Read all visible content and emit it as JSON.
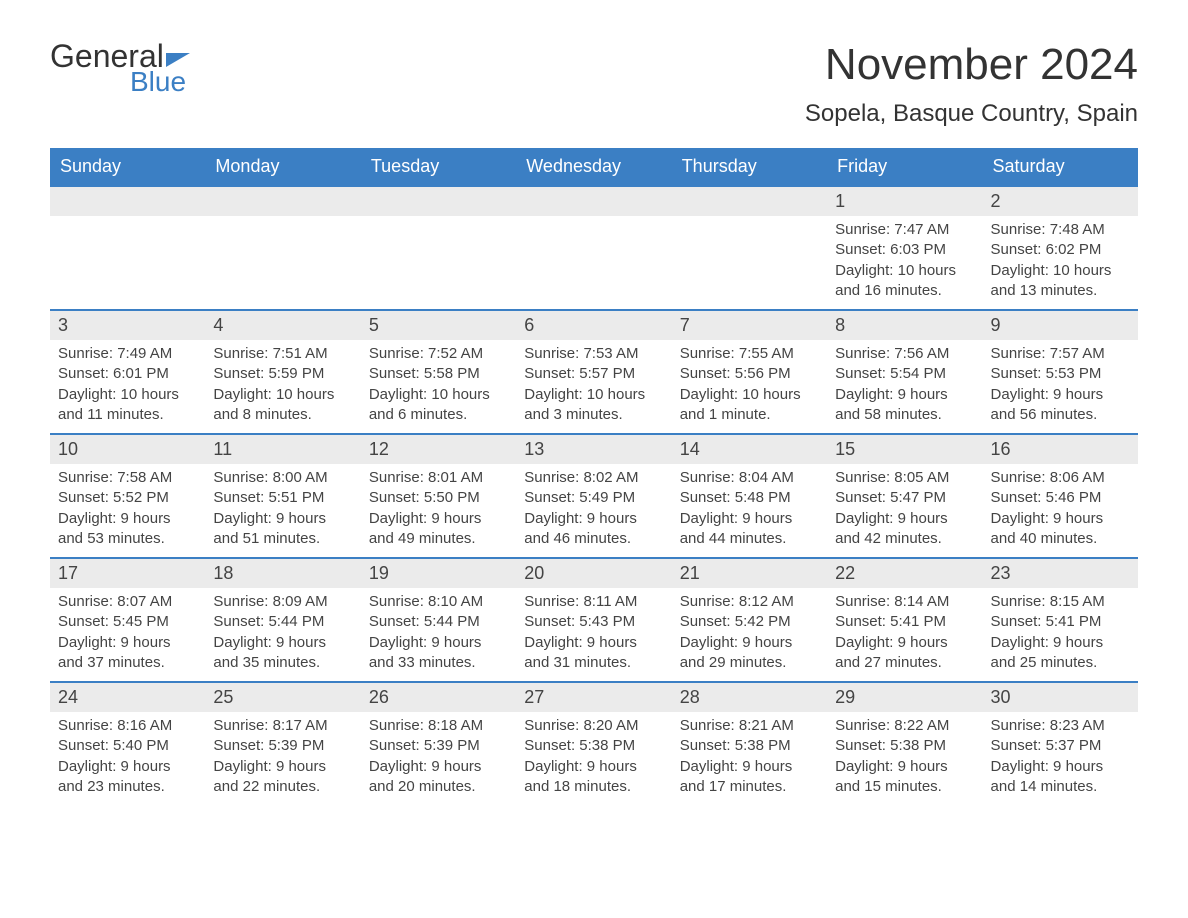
{
  "logo": {
    "text_top": "General",
    "text_bottom": "Blue",
    "top_color": "#333333",
    "bottom_color": "#3b7fc4",
    "triangle_color": "#3b7fc4"
  },
  "header": {
    "month_title": "November 2024",
    "location": "Sopela, Basque Country, Spain"
  },
  "colors": {
    "header_bg": "#3b7fc4",
    "header_text": "#ffffff",
    "daynum_bg": "#ebebeb",
    "border_top": "#3b7fc4",
    "text": "#444444",
    "background": "#ffffff"
  },
  "day_headers": [
    "Sunday",
    "Monday",
    "Tuesday",
    "Wednesday",
    "Thursday",
    "Friday",
    "Saturday"
  ],
  "weeks": [
    [
      {
        "empty": true
      },
      {
        "empty": true
      },
      {
        "empty": true
      },
      {
        "empty": true
      },
      {
        "empty": true
      },
      {
        "day": "1",
        "sunrise": "Sunrise: 7:47 AM",
        "sunset": "Sunset: 6:03 PM",
        "daylight1": "Daylight: 10 hours",
        "daylight2": "and 16 minutes."
      },
      {
        "day": "2",
        "sunrise": "Sunrise: 7:48 AM",
        "sunset": "Sunset: 6:02 PM",
        "daylight1": "Daylight: 10 hours",
        "daylight2": "and 13 minutes."
      }
    ],
    [
      {
        "day": "3",
        "sunrise": "Sunrise: 7:49 AM",
        "sunset": "Sunset: 6:01 PM",
        "daylight1": "Daylight: 10 hours",
        "daylight2": "and 11 minutes."
      },
      {
        "day": "4",
        "sunrise": "Sunrise: 7:51 AM",
        "sunset": "Sunset: 5:59 PM",
        "daylight1": "Daylight: 10 hours",
        "daylight2": "and 8 minutes."
      },
      {
        "day": "5",
        "sunrise": "Sunrise: 7:52 AM",
        "sunset": "Sunset: 5:58 PM",
        "daylight1": "Daylight: 10 hours",
        "daylight2": "and 6 minutes."
      },
      {
        "day": "6",
        "sunrise": "Sunrise: 7:53 AM",
        "sunset": "Sunset: 5:57 PM",
        "daylight1": "Daylight: 10 hours",
        "daylight2": "and 3 minutes."
      },
      {
        "day": "7",
        "sunrise": "Sunrise: 7:55 AM",
        "sunset": "Sunset: 5:56 PM",
        "daylight1": "Daylight: 10 hours",
        "daylight2": "and 1 minute."
      },
      {
        "day": "8",
        "sunrise": "Sunrise: 7:56 AM",
        "sunset": "Sunset: 5:54 PM",
        "daylight1": "Daylight: 9 hours",
        "daylight2": "and 58 minutes."
      },
      {
        "day": "9",
        "sunrise": "Sunrise: 7:57 AM",
        "sunset": "Sunset: 5:53 PM",
        "daylight1": "Daylight: 9 hours",
        "daylight2": "and 56 minutes."
      }
    ],
    [
      {
        "day": "10",
        "sunrise": "Sunrise: 7:58 AM",
        "sunset": "Sunset: 5:52 PM",
        "daylight1": "Daylight: 9 hours",
        "daylight2": "and 53 minutes."
      },
      {
        "day": "11",
        "sunrise": "Sunrise: 8:00 AM",
        "sunset": "Sunset: 5:51 PM",
        "daylight1": "Daylight: 9 hours",
        "daylight2": "and 51 minutes."
      },
      {
        "day": "12",
        "sunrise": "Sunrise: 8:01 AM",
        "sunset": "Sunset: 5:50 PM",
        "daylight1": "Daylight: 9 hours",
        "daylight2": "and 49 minutes."
      },
      {
        "day": "13",
        "sunrise": "Sunrise: 8:02 AM",
        "sunset": "Sunset: 5:49 PM",
        "daylight1": "Daylight: 9 hours",
        "daylight2": "and 46 minutes."
      },
      {
        "day": "14",
        "sunrise": "Sunrise: 8:04 AM",
        "sunset": "Sunset: 5:48 PM",
        "daylight1": "Daylight: 9 hours",
        "daylight2": "and 44 minutes."
      },
      {
        "day": "15",
        "sunrise": "Sunrise: 8:05 AM",
        "sunset": "Sunset: 5:47 PM",
        "daylight1": "Daylight: 9 hours",
        "daylight2": "and 42 minutes."
      },
      {
        "day": "16",
        "sunrise": "Sunrise: 8:06 AM",
        "sunset": "Sunset: 5:46 PM",
        "daylight1": "Daylight: 9 hours",
        "daylight2": "and 40 minutes."
      }
    ],
    [
      {
        "day": "17",
        "sunrise": "Sunrise: 8:07 AM",
        "sunset": "Sunset: 5:45 PM",
        "daylight1": "Daylight: 9 hours",
        "daylight2": "and 37 minutes."
      },
      {
        "day": "18",
        "sunrise": "Sunrise: 8:09 AM",
        "sunset": "Sunset: 5:44 PM",
        "daylight1": "Daylight: 9 hours",
        "daylight2": "and 35 minutes."
      },
      {
        "day": "19",
        "sunrise": "Sunrise: 8:10 AM",
        "sunset": "Sunset: 5:44 PM",
        "daylight1": "Daylight: 9 hours",
        "daylight2": "and 33 minutes."
      },
      {
        "day": "20",
        "sunrise": "Sunrise: 8:11 AM",
        "sunset": "Sunset: 5:43 PM",
        "daylight1": "Daylight: 9 hours",
        "daylight2": "and 31 minutes."
      },
      {
        "day": "21",
        "sunrise": "Sunrise: 8:12 AM",
        "sunset": "Sunset: 5:42 PM",
        "daylight1": "Daylight: 9 hours",
        "daylight2": "and 29 minutes."
      },
      {
        "day": "22",
        "sunrise": "Sunrise: 8:14 AM",
        "sunset": "Sunset: 5:41 PM",
        "daylight1": "Daylight: 9 hours",
        "daylight2": "and 27 minutes."
      },
      {
        "day": "23",
        "sunrise": "Sunrise: 8:15 AM",
        "sunset": "Sunset: 5:41 PM",
        "daylight1": "Daylight: 9 hours",
        "daylight2": "and 25 minutes."
      }
    ],
    [
      {
        "day": "24",
        "sunrise": "Sunrise: 8:16 AM",
        "sunset": "Sunset: 5:40 PM",
        "daylight1": "Daylight: 9 hours",
        "daylight2": "and 23 minutes."
      },
      {
        "day": "25",
        "sunrise": "Sunrise: 8:17 AM",
        "sunset": "Sunset: 5:39 PM",
        "daylight1": "Daylight: 9 hours",
        "daylight2": "and 22 minutes."
      },
      {
        "day": "26",
        "sunrise": "Sunrise: 8:18 AM",
        "sunset": "Sunset: 5:39 PM",
        "daylight1": "Daylight: 9 hours",
        "daylight2": "and 20 minutes."
      },
      {
        "day": "27",
        "sunrise": "Sunrise: 8:20 AM",
        "sunset": "Sunset: 5:38 PM",
        "daylight1": "Daylight: 9 hours",
        "daylight2": "and 18 minutes."
      },
      {
        "day": "28",
        "sunrise": "Sunrise: 8:21 AM",
        "sunset": "Sunset: 5:38 PM",
        "daylight1": "Daylight: 9 hours",
        "daylight2": "and 17 minutes."
      },
      {
        "day": "29",
        "sunrise": "Sunrise: 8:22 AM",
        "sunset": "Sunset: 5:38 PM",
        "daylight1": "Daylight: 9 hours",
        "daylight2": "and 15 minutes."
      },
      {
        "day": "30",
        "sunrise": "Sunrise: 8:23 AM",
        "sunset": "Sunset: 5:37 PM",
        "daylight1": "Daylight: 9 hours",
        "daylight2": "and 14 minutes."
      }
    ]
  ]
}
